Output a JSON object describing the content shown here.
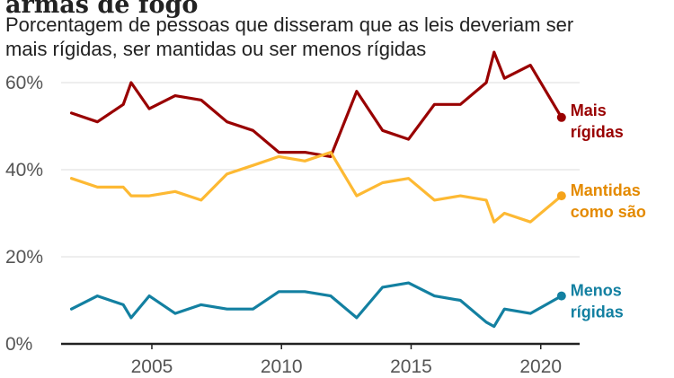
{
  "chart_data": {
    "type": "line",
    "title": "armas de fogo",
    "subtitle_lines": [
      "Porcentagem de pessoas que disseram que as leis deveriam ser",
      "mais rígidas, ser mantidas ou ser menos rígidas"
    ],
    "xlabel": "",
    "ylabel": "",
    "xlim": [
      2001.5,
      2021.5
    ],
    "ylim": [
      0,
      60
    ],
    "x_ticks": [
      2005,
      2010,
      2015,
      2020
    ],
    "x_tick_labels": [
      "2005",
      "2010",
      "2015",
      "2020"
    ],
    "y_ticks": [
      0,
      20,
      40,
      60
    ],
    "y_tick_labels": [
      "0%",
      "20%",
      "40%",
      "60%"
    ],
    "grid": true,
    "series": [
      {
        "name": "Mais rígidas",
        "label_lines": [
          "Mais",
          "rígidas"
        ],
        "color": "#990000",
        "x": [
          2001.9,
          2002.9,
          2003.9,
          2004.2,
          2004.9,
          2005.9,
          2006.9,
          2007.9,
          2008.9,
          2009.9,
          2010.9,
          2011.9,
          2012.9,
          2013.9,
          2014.9,
          2015.9,
          2016.9,
          2017.9,
          2018.2,
          2018.6,
          2019.6,
          2020.8
        ],
        "values": [
          53,
          51,
          55,
          60,
          54,
          57,
          56,
          51,
          49,
          44,
          44,
          43,
          58,
          49,
          47,
          55,
          55,
          60,
          67,
          61,
          64,
          52
        ]
      },
      {
        "name": "Mantidas como são",
        "label_lines": [
          "Mantidas",
          "como são"
        ],
        "color": "#fdb933",
        "marker_color": "#f5a31a",
        "label_color": "#e48a00",
        "x": [
          2001.9,
          2002.9,
          2003.9,
          2004.2,
          2004.9,
          2005.9,
          2006.9,
          2007.9,
          2008.9,
          2009.9,
          2010.9,
          2011.9,
          2012.9,
          2013.9,
          2014.9,
          2015.9,
          2016.9,
          2017.9,
          2018.2,
          2018.6,
          2019.6,
          2020.8
        ],
        "values": [
          38,
          36,
          36,
          34,
          34,
          35,
          33,
          39,
          41,
          43,
          42,
          44,
          34,
          37,
          38,
          33,
          34,
          33,
          28,
          30,
          28,
          34
        ]
      },
      {
        "name": "Menos rígidas",
        "label_lines": [
          "Menos",
          "rígidas"
        ],
        "color": "#1380a1",
        "x": [
          2001.9,
          2002.9,
          2003.9,
          2004.2,
          2004.9,
          2005.9,
          2006.9,
          2007.9,
          2008.9,
          2009.9,
          2010.9,
          2011.9,
          2012.9,
          2013.9,
          2014.9,
          2015.9,
          2016.9,
          2017.9,
          2018.2,
          2018.6,
          2019.6,
          2020.8
        ],
        "values": [
          8,
          11,
          9,
          6,
          11,
          7,
          9,
          8,
          8,
          12,
          12,
          11,
          6,
          13,
          14,
          11,
          10,
          5,
          4,
          8,
          7,
          11
        ]
      }
    ]
  }
}
